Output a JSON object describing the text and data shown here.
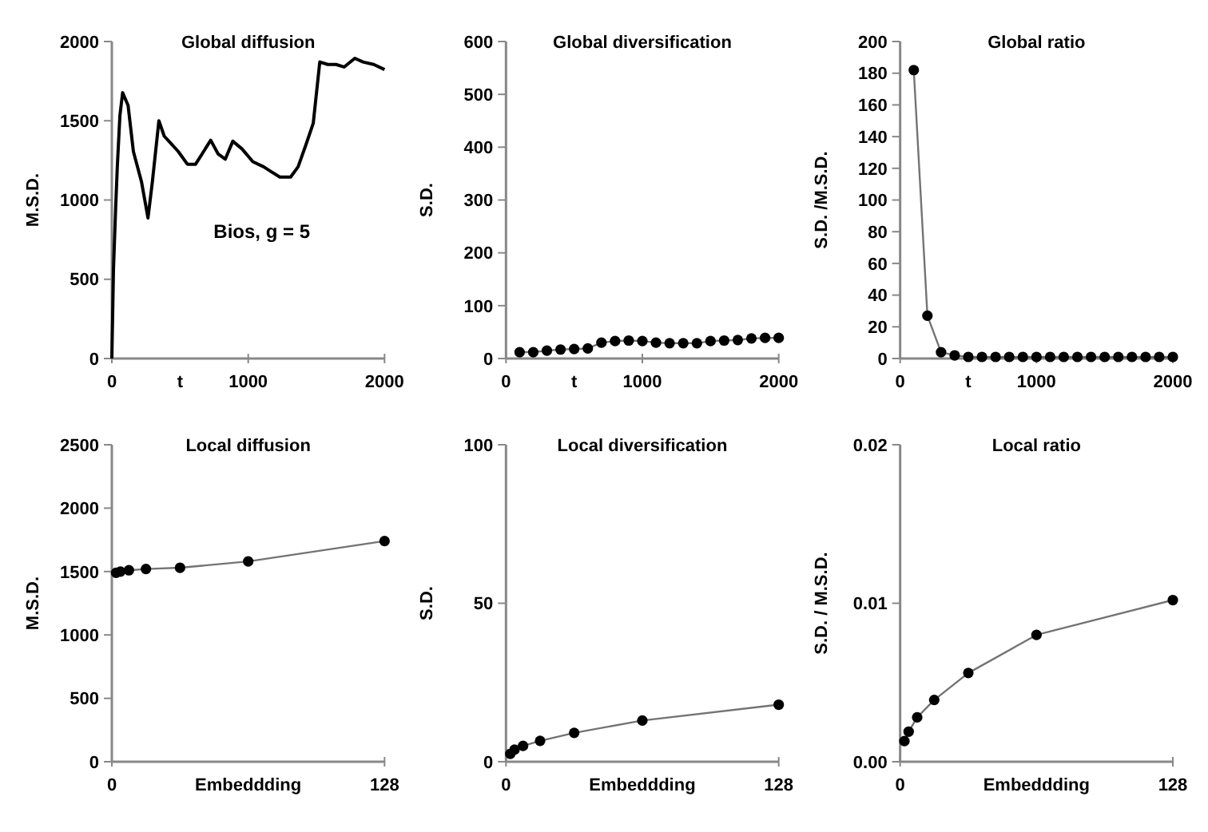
{
  "chart_data": [
    {
      "type": "line",
      "title": "Global diffusion",
      "xlabel": "t",
      "ylabel": "M.S.D.",
      "xlim": [
        0,
        2000
      ],
      "xticks": [
        0,
        1000,
        2000
      ],
      "ylim": [
        0,
        2000
      ],
      "yticks": [
        0,
        500,
        1000,
        1500,
        2000
      ],
      "annotations": [
        "Bios, g = 5"
      ],
      "marker": "none",
      "series": [
        {
          "color": "#000000",
          "x": [
            0,
            12,
            28,
            40,
            59,
            79,
            119,
            158,
            218,
            265,
            297,
            345,
            384,
            436,
            487,
            554,
            614,
            673,
            725,
            780,
            832,
            887,
            954,
            1034,
            1113,
            1172,
            1232,
            1311,
            1366,
            1426,
            1477,
            1525,
            1584,
            1644,
            1703,
            1782,
            1842,
            1921,
            2000
          ],
          "values": [
            0,
            565,
            952,
            1210,
            1532,
            1677,
            1597,
            1306,
            1113,
            887,
            1113,
            1500,
            1403,
            1355,
            1306,
            1226,
            1226,
            1306,
            1377,
            1290,
            1258,
            1371,
            1323,
            1242,
            1210,
            1177,
            1145,
            1145,
            1210,
            1355,
            1484,
            1871,
            1855,
            1855,
            1839,
            1894,
            1871,
            1855,
            1823
          ]
        }
      ]
    },
    {
      "type": "line",
      "title": "Global diversification",
      "xlabel": "t",
      "ylabel": "S.D.",
      "xlim": [
        0,
        2000
      ],
      "xticks": [
        0,
        1000,
        2000
      ],
      "ylim": [
        0,
        600
      ],
      "yticks": [
        0,
        100,
        200,
        300,
        400,
        500,
        600
      ],
      "marker": "circle",
      "series": [
        {
          "color": "#000000",
          "x": [
            100,
            200,
            300,
            400,
            500,
            600,
            700,
            800,
            900,
            1000,
            1100,
            1200,
            1300,
            1400,
            1500,
            1600,
            1700,
            1800,
            1900,
            2000
          ],
          "values": [
            12,
            12,
            15,
            17,
            18,
            19,
            30,
            33,
            34,
            33,
            30,
            29,
            29,
            29,
            33,
            34,
            35,
            38,
            39,
            39
          ]
        }
      ]
    },
    {
      "type": "line",
      "title": "Global ratio",
      "xlabel": "t",
      "ylabel": "S.D. /M.S.D.",
      "xlim": [
        0,
        2000
      ],
      "xticks": [
        0,
        1000,
        2000
      ],
      "ylim": [
        0,
        200
      ],
      "yticks": [
        0,
        20,
        40,
        60,
        80,
        100,
        120,
        140,
        160,
        180,
        200
      ],
      "marker": "circle",
      "series": [
        {
          "color": "#000000",
          "x": [
            100,
            200,
            300,
            400,
            500,
            600,
            700,
            800,
            900,
            1000,
            1100,
            1200,
            1300,
            1400,
            1500,
            1600,
            1700,
            1800,
            1900,
            2000
          ],
          "values": [
            182,
            27,
            4,
            2,
            1,
            1,
            1,
            1,
            1,
            1,
            1,
            1,
            1,
            1,
            1,
            1,
            1,
            1,
            1,
            1
          ]
        }
      ]
    },
    {
      "type": "line",
      "title": "Local diffusion",
      "xlabel": "Embeddding",
      "ylabel": "M.S.D.",
      "xlim": [
        0,
        128
      ],
      "xticks": [
        0,
        128
      ],
      "ylim": [
        0,
        2500
      ],
      "yticks": [
        0,
        500,
        1000,
        1500,
        2000,
        2500
      ],
      "marker": "circle",
      "series": [
        {
          "color": "#000000",
          "x": [
            2,
            4,
            8,
            16,
            32,
            64,
            128
          ],
          "values": [
            1490,
            1500,
            1510,
            1520,
            1530,
            1580,
            1740
          ]
        }
      ]
    },
    {
      "type": "line",
      "title": "Local diversification",
      "xlabel": "Embeddding",
      "ylabel": "S.D.",
      "xlim": [
        0,
        128
      ],
      "xticks": [
        0,
        128
      ],
      "ylim": [
        0,
        100
      ],
      "yticks": [
        0,
        50,
        100
      ],
      "marker": "circle",
      "series": [
        {
          "color": "#000000",
          "x": [
            2,
            4,
            8,
            16,
            32,
            64,
            128
          ],
          "values": [
            2.5,
            3.8,
            5,
            6.6,
            9.1,
            13,
            18
          ]
        }
      ]
    },
    {
      "type": "line",
      "title": "Local ratio",
      "xlabel": "Embeddding",
      "ylabel": "S.D. / M.S.D.",
      "xlim": [
        0,
        128
      ],
      "xticks": [
        0,
        128
      ],
      "ylim": [
        0,
        0.02
      ],
      "yticks": [
        {
          "value": 0,
          "label": "0.00"
        },
        {
          "value": 0.01,
          "label": "0.01"
        },
        {
          "value": 0.02,
          "label": "0.02"
        }
      ],
      "marker": "circle",
      "series": [
        {
          "color": "#000000",
          "x": [
            2,
            4,
            8,
            16,
            32,
            64,
            128
          ],
          "values": [
            0.0013,
            0.0019,
            0.0028,
            0.0039,
            0.0056,
            0.008,
            0.0102
          ]
        }
      ]
    }
  ]
}
